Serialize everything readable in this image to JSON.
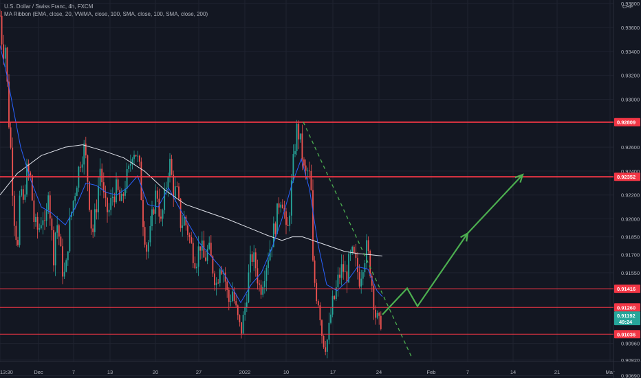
{
  "header": {
    "title": "U.S. Dollar / Swiss Franc, 4h, FXCM",
    "indicator": "MA Ribbon (EMA, close, 20, VWMA, close, 100, SMA, close, 100, SMA, close, 200)"
  },
  "currency": "CHF",
  "colors": {
    "background": "#131722",
    "grid": "#1f2330",
    "up": "#26a69a",
    "down": "#ef5350",
    "level": "#f23645",
    "ma_white": "#e0e3eb",
    "ma_blue": "#2962ff",
    "projection": "#4caf50",
    "current_tag": "#26a69a"
  },
  "chart_data": {
    "type": "candlestick",
    "symbol": "USDCHF",
    "timeframe": "4h",
    "ylim": [
      0.9067,
      0.9383
    ],
    "y_ticks": [
      "0.93800",
      "0.93600",
      "0.93400",
      "0.93200",
      "0.93000",
      "0.92600",
      "0.92400",
      "0.92200",
      "0.92000",
      "0.91850",
      "0.91700",
      "0.91550",
      "0.90960",
      "0.90820",
      "0.90690"
    ],
    "x_ticks": [
      "13:30",
      "Dec",
      "7",
      "13",
      "20",
      "27",
      "2022",
      "10",
      "17",
      "24",
      "Feb",
      "7",
      "14",
      "21",
      "Mar"
    ],
    "candle_anchors": [
      [
        0,
        0.937
      ],
      [
        4,
        0.934
      ],
      [
        8,
        0.9345
      ],
      [
        12,
        0.929
      ],
      [
        16,
        0.9255
      ],
      [
        20,
        0.9205
      ],
      [
        26,
        0.9175
      ],
      [
        30,
        0.923
      ],
      [
        34,
        0.921
      ],
      [
        38,
        0.924
      ],
      [
        44,
        0.9235
      ],
      [
        50,
        0.9195
      ],
      [
        56,
        0.919
      ],
      [
        62,
        0.9205
      ],
      [
        66,
        0.9185
      ],
      [
        70,
        0.923
      ],
      [
        74,
        0.9195
      ],
      [
        78,
        0.917
      ],
      [
        82,
        0.92
      ],
      [
        86,
        0.9185
      ],
      [
        90,
        0.916
      ],
      [
        95,
        0.915
      ],
      [
        100,
        0.919
      ],
      [
        105,
        0.921
      ],
      [
        111,
        0.923
      ],
      [
        117,
        0.925
      ],
      [
        123,
        0.926
      ],
      [
        128,
        0.923
      ],
      [
        134,
        0.9185
      ],
      [
        140,
        0.921
      ],
      [
        146,
        0.9245
      ],
      [
        152,
        0.921
      ],
      [
        158,
        0.9205
      ],
      [
        164,
        0.922
      ],
      [
        170,
        0.9225
      ],
      [
        176,
        0.921
      ],
      [
        182,
        0.923
      ],
      [
        188,
        0.924
      ],
      [
        193,
        0.926
      ],
      [
        198,
        0.9255
      ],
      [
        203,
        0.924
      ],
      [
        208,
        0.92
      ],
      [
        213,
        0.9175
      ],
      [
        218,
        0.9185
      ],
      [
        223,
        0.921
      ],
      [
        228,
        0.9225
      ],
      [
        234,
        0.9195
      ],
      [
        240,
        0.922
      ],
      [
        246,
        0.925
      ],
      [
        252,
        0.9225
      ],
      [
        258,
        0.922
      ],
      [
        263,
        0.9195
      ],
      [
        268,
        0.92
      ],
      [
        273,
        0.919
      ],
      [
        279,
        0.9175
      ],
      [
        285,
        0.9165
      ],
      [
        291,
        0.918
      ],
      [
        297,
        0.9165
      ],
      [
        303,
        0.9175
      ],
      [
        309,
        0.916
      ],
      [
        315,
        0.9145
      ],
      [
        320,
        0.9165
      ],
      [
        326,
        0.9155
      ],
      [
        332,
        0.913
      ],
      [
        338,
        0.914
      ],
      [
        344,
        0.912
      ],
      [
        350,
        0.9105
      ],
      [
        355,
        0.912
      ],
      [
        361,
        0.915
      ],
      [
        366,
        0.917
      ],
      [
        372,
        0.916
      ],
      [
        378,
        0.914
      ],
      [
        384,
        0.9155
      ],
      [
        390,
        0.917
      ],
      [
        396,
        0.9185
      ],
      [
        402,
        0.92
      ],
      [
        407,
        0.922
      ],
      [
        412,
        0.9215
      ],
      [
        417,
        0.918
      ],
      [
        422,
        0.9215
      ],
      [
        427,
        0.925
      ],
      [
        431,
        0.9275
      ],
      [
        435,
        0.927
      ],
      [
        439,
        0.9255
      ],
      [
        443,
        0.9235
      ],
      [
        448,
        0.924
      ],
      [
        452,
        0.923
      ],
      [
        455,
        0.916
      ],
      [
        459,
        0.914
      ],
      [
        464,
        0.913
      ],
      [
        468,
        0.9105
      ],
      [
        472,
        0.9095
      ],
      [
        477,
        0.91
      ],
      [
        482,
        0.9125
      ],
      [
        487,
        0.9135
      ],
      [
        492,
        0.915
      ],
      [
        498,
        0.916
      ],
      [
        503,
        0.915
      ],
      [
        508,
        0.9165
      ],
      [
        513,
        0.917
      ],
      [
        518,
        0.916
      ],
      [
        523,
        0.915
      ],
      [
        528,
        0.9165
      ],
      [
        533,
        0.9175
      ],
      [
        537,
        0.9165
      ],
      [
        541,
        0.9145
      ],
      [
        546,
        0.912
      ],
      [
        551,
        0.911
      ],
      [
        556,
        0.912
      ]
    ],
    "series": [
      {
        "name": "SMA 200",
        "color": "#e0e3eb",
        "points": [
          [
            0,
            0.922
          ],
          [
            25,
            0.9238
          ],
          [
            60,
            0.9253
          ],
          [
            95,
            0.926
          ],
          [
            120,
            0.9262
          ],
          [
            150,
            0.9257
          ],
          [
            180,
            0.9251
          ],
          [
            210,
            0.924
          ],
          [
            240,
            0.9224
          ],
          [
            270,
            0.9212
          ],
          [
            300,
            0.9206
          ],
          [
            330,
            0.92
          ],
          [
            360,
            0.9193
          ],
          [
            390,
            0.9186
          ],
          [
            410,
            0.9182
          ],
          [
            425,
            0.9185
          ],
          [
            440,
            0.9185
          ],
          [
            460,
            0.9181
          ],
          [
            480,
            0.9177
          ],
          [
            500,
            0.9173
          ],
          [
            520,
            0.9171
          ],
          [
            540,
            0.917
          ],
          [
            556,
            0.9169
          ]
        ]
      },
      {
        "name": "EMA 20",
        "color": "#2962ff",
        "points": [
          [
            0,
            0.9345
          ],
          [
            10,
            0.932
          ],
          [
            20,
            0.929
          ],
          [
            30,
            0.926
          ],
          [
            45,
            0.9232
          ],
          [
            60,
            0.921
          ],
          [
            75,
            0.9205
          ],
          [
            95,
            0.9195
          ],
          [
            110,
            0.921
          ],
          [
            125,
            0.923
          ],
          [
            140,
            0.9228
          ],
          [
            155,
            0.9222
          ],
          [
            170,
            0.922
          ],
          [
            185,
            0.9226
          ],
          [
            200,
            0.9236
          ],
          [
            215,
            0.9212
          ],
          [
            230,
            0.921
          ],
          [
            245,
            0.9226
          ],
          [
            260,
            0.921
          ],
          [
            275,
            0.9195
          ],
          [
            290,
            0.918
          ],
          [
            305,
            0.917
          ],
          [
            320,
            0.916
          ],
          [
            335,
            0.9145
          ],
          [
            350,
            0.913
          ],
          [
            365,
            0.9145
          ],
          [
            380,
            0.9155
          ],
          [
            395,
            0.9175
          ],
          [
            410,
            0.92
          ],
          [
            425,
            0.923
          ],
          [
            438,
            0.925
          ],
          [
            450,
            0.9225
          ],
          [
            462,
            0.918
          ],
          [
            475,
            0.9145
          ],
          [
            490,
            0.914
          ],
          [
            505,
            0.9148
          ],
          [
            520,
            0.916
          ],
          [
            535,
            0.9158
          ],
          [
            548,
            0.914
          ],
          [
            556,
            0.9135
          ]
        ]
      }
    ],
    "levels": [
      {
        "value": 0.92809,
        "label": "0.92809"
      },
      {
        "value": 0.92352,
        "label": "0.92352"
      },
      {
        "value": 0.91416,
        "label": "0.91416"
      },
      {
        "value": 0.9126,
        "label": "0.91260"
      },
      {
        "value": 0.91036,
        "label": "0.91036"
      }
    ],
    "current_price": {
      "value": 0.91192,
      "label": "0.91192",
      "countdown": "49:24"
    },
    "trendline": {
      "from": [
        441,
        0.9281
      ],
      "to": [
        598,
        0.9085
      ],
      "style": "dashed"
    },
    "projection": [
      [
        556,
        0.912
      ],
      [
        592,
        0.9142
      ],
      [
        607,
        0.9127
      ],
      [
        680,
        0.9188
      ],
      [
        760,
        0.9237
      ]
    ]
  }
}
